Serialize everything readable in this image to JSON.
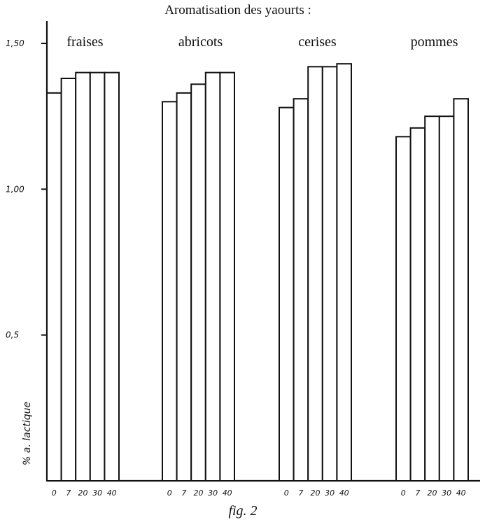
{
  "chart_data": {
    "type": "bar",
    "title": "Aromatisation des yaourts :",
    "ylabel": "% a. lactique",
    "caption": "fig. 2",
    "ylim": [
      0,
      1.5
    ],
    "yticks": [
      {
        "value": 1.5,
        "label": "1,50"
      },
      {
        "value": 1.0,
        "label": "1,00"
      },
      {
        "value": 0.5,
        "label": "0,5"
      }
    ],
    "categories": [
      "0",
      "7",
      "20",
      "30",
      "40"
    ],
    "groups": [
      {
        "name": "fraises",
        "values": [
          1.33,
          1.38,
          1.4,
          1.4,
          1.4
        ]
      },
      {
        "name": "abricots",
        "values": [
          1.3,
          1.33,
          1.36,
          1.4,
          1.4
        ]
      },
      {
        "name": "cerises",
        "values": [
          1.28,
          1.31,
          1.42,
          1.42,
          1.43
        ]
      },
      {
        "name": "pommes",
        "values": [
          1.18,
          1.21,
          1.25,
          1.25,
          1.31
        ]
      }
    ]
  }
}
